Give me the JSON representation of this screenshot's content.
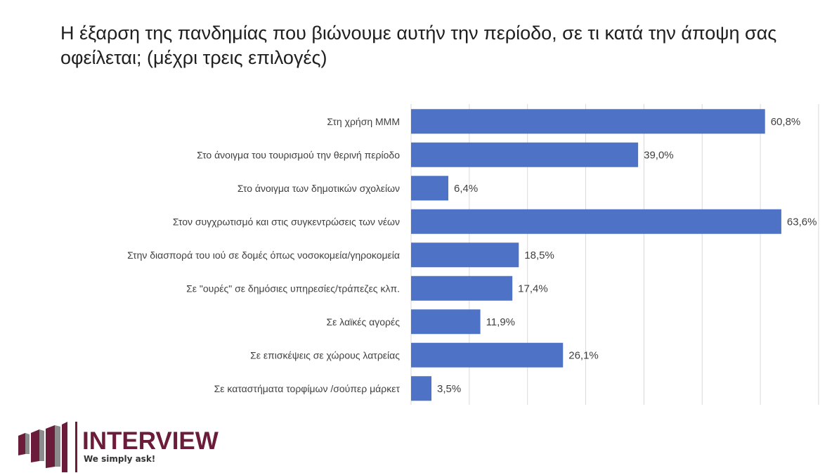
{
  "chart_data": {
    "type": "bar",
    "orientation": "horizontal",
    "title": "Η έξαρση της πανδημίας που βιώνουμε αυτήν την περίοδο, σε τι κατά την άποψη σας οφείλεται; (μέχρι τρεις επιλογές)",
    "categories": [
      "Στη χρήση ΜΜΜ",
      "Στο άνοιγμα του τουρισμού την θερινή περίοδο",
      "Στο άνοιγμα των δημοτικών σχολείων",
      "Στον συγχρωτισμό και στις συγκεντρώσεις των νέων",
      "Στην διασπορά του ιού σε δομές όπως νοσοκομεία/γηροκομεία",
      "Σε \"ουρές\" σε δημόσιες υπηρεσίες/τράπεζες κλπ.",
      "Σε λαϊκές αγορές",
      "Σε επισκέψεις σε χώρους λατρείας",
      "Σε καταστήματα τορφίμων /σούπερ μάρκετ"
    ],
    "values": [
      60.8,
      39.0,
      6.4,
      63.6,
      18.5,
      17.4,
      11.9,
      26.1,
      3.5
    ],
    "value_labels": [
      "60,8%",
      "39,0%",
      "6,4%",
      "63,6%",
      "18,5%",
      "17,4%",
      "11,9%",
      "26,1%",
      "3,5%"
    ],
    "xlim": [
      0,
      70
    ],
    "grid": true,
    "bar_color": "#4e72c6"
  },
  "logo": {
    "name": "INTERVIEW",
    "tagline": "We simply ask!",
    "colors": {
      "primary": "#6b1c3a",
      "gray": "#8c8c8c"
    }
  }
}
